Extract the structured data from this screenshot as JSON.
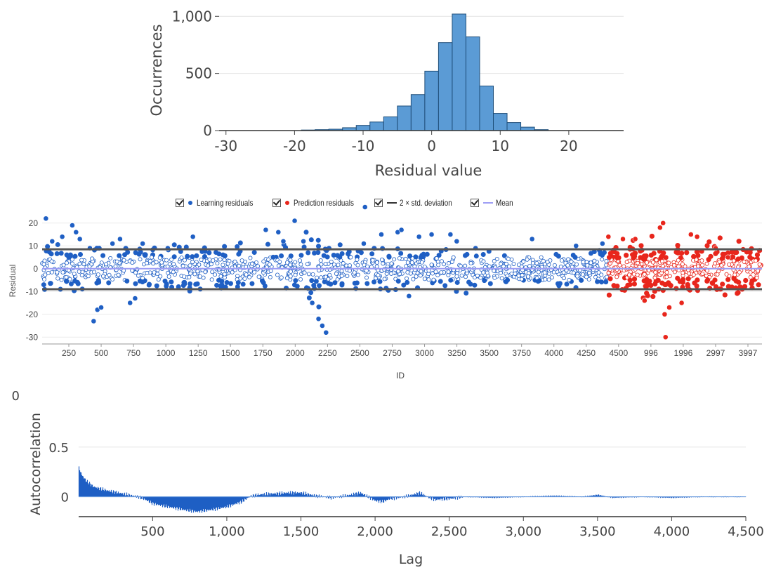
{
  "colors": {
    "histogram_bar": "#5b9bd5",
    "histogram_edge": "#1f4e79",
    "learning": "#1f5fc4",
    "prediction": "#e8261c",
    "std_line": "#555555",
    "mean_line": "#9d9df5",
    "acf_fill": "#1f5fc4"
  },
  "legend": {
    "items": [
      {
        "label": "Learning residuals",
        "marker": "dot",
        "color": "#1f5fc4"
      },
      {
        "label": "Prediction residuals",
        "marker": "dot",
        "color": "#e8261c"
      },
      {
        "label": "2 × std. deviation",
        "marker": "line",
        "color": "#333333"
      },
      {
        "label": "Mean",
        "marker": "line",
        "color": "#9d9df5"
      }
    ]
  },
  "chart_data": [
    {
      "type": "bar",
      "xlabel": "Residual value",
      "ylabel": "Occurrences",
      "xlim": [
        -31,
        28
      ],
      "ylim": [
        0,
        1020
      ],
      "xticks": [
        -30,
        -20,
        -10,
        0,
        10,
        20
      ],
      "xtick_labels": [
        "-30",
        "-20",
        "-10",
        "0",
        "10",
        "20"
      ],
      "yticks": [
        0,
        500,
        1000
      ],
      "ytick_labels": [
        "0",
        "500",
        "1,000"
      ],
      "bin_width": 2,
      "bin_starts": [
        -19,
        -17,
        -15,
        -13,
        -11,
        -9,
        -7,
        -5,
        -3,
        -1,
        1,
        3,
        5,
        7,
        9,
        11,
        13,
        15
      ],
      "values": [
        5,
        8,
        12,
        25,
        45,
        75,
        120,
        215,
        315,
        520,
        770,
        1020,
        820,
        390,
        150,
        70,
        30,
        8
      ]
    },
    {
      "type": "scatter",
      "xlabel": "ID",
      "ylabel": "Residual",
      "ylim": [
        -33,
        23
      ],
      "yticks": [
        20,
        10,
        0,
        -10,
        -20,
        -30
      ],
      "ytick_labels": [
        "20",
        "10",
        "0",
        "-10",
        "-20",
        "-30"
      ],
      "xtick_labels": [
        "250",
        "500",
        "750",
        "1000",
        "1250",
        "1500",
        "1750",
        "2000",
        "2250",
        "2500",
        "2750",
        "3000",
        "3250",
        "3500",
        "3750",
        "4000",
        "4250",
        "4500",
        "996",
        "1996",
        "2997",
        "3997"
      ],
      "std_upper": 8.5,
      "std_lower": -9,
      "mean": 0,
      "learning_count": 4500,
      "prediction_count": 5000,
      "series": [
        {
          "name": "Learning residuals",
          "outliers": [
            [
              30,
              22
            ],
            [
              80,
              12
            ],
            [
              160,
              14
            ],
            [
              240,
              19
            ],
            [
              270,
              16
            ],
            [
              300,
              13
            ],
            [
              380,
              9
            ],
            [
              410,
              -23
            ],
            [
              440,
              -18
            ],
            [
              470,
              -17
            ],
            [
              560,
              11
            ],
            [
              620,
              13
            ],
            [
              700,
              -15
            ],
            [
              740,
              -13
            ],
            [
              800,
              11
            ],
            [
              1000,
              9
            ],
            [
              1200,
              14
            ],
            [
              1780,
              17
            ],
            [
              1880,
              16
            ],
            [
              1920,
              12
            ],
            [
              2010,
              21
            ],
            [
              2080,
              12
            ],
            [
              2150,
              -15
            ],
            [
              2200,
              -22
            ],
            [
              2230,
              -25
            ],
            [
              2260,
              -28
            ],
            [
              2560,
              11
            ],
            [
              2570,
              27
            ],
            [
              2700,
              15
            ],
            [
              2830,
              16
            ],
            [
              2860,
              17
            ],
            [
              2920,
              -12
            ],
            [
              3000,
              14
            ],
            [
              3100,
              15
            ],
            [
              3250,
              15
            ],
            [
              3300,
              12
            ],
            [
              3450,
              9
            ],
            [
              3900,
              13
            ],
            [
              4250,
              10
            ],
            [
              4460,
              11
            ]
          ]
        },
        {
          "name": "Prediction residuals",
          "outliers": [
            [
              30,
              14
            ],
            [
              500,
              13
            ],
            [
              900,
              13
            ],
            [
              1200,
              -14
            ],
            [
              1700,
              18
            ],
            [
              1800,
              20
            ],
            [
              1850,
              -20
            ],
            [
              1880,
              -30
            ],
            [
              2000,
              -17
            ],
            [
              2400,
              -15
            ],
            [
              2700,
              15
            ],
            [
              2900,
              14
            ],
            [
              3500,
              9
            ],
            [
              3900,
              5
            ]
          ]
        }
      ]
    },
    {
      "type": "area",
      "xlabel": "Lag",
      "ylabel": "Autocorrelation",
      "xlim": [
        1,
        4500
      ],
      "ylim": [
        -0.2,
        1.0
      ],
      "yticks": [
        0,
        0.5
      ],
      "ytick_labels": [
        "0",
        "0.5"
      ],
      "top_label": "0",
      "xticks": [
        500,
        1000,
        1500,
        2000,
        2500,
        3000,
        3500,
        4000,
        4500
      ],
      "xtick_labels": [
        "500",
        "1,000",
        "1,500",
        "2,000",
        "2,500",
        "3,000",
        "3,500",
        "4,000",
        "4,500"
      ],
      "envelope": {
        "x": [
          1,
          20,
          50,
          100,
          150,
          200,
          300,
          400,
          450,
          500,
          600,
          700,
          800,
          900,
          1000,
          1100,
          1150,
          1200,
          1300,
          1400,
          1500,
          1600,
          1700,
          1800,
          1900,
          2000,
          2050,
          2100,
          2200,
          2300,
          2350,
          2400,
          2500,
          2600,
          2800,
          3000,
          3200,
          3400,
          3500,
          3600,
          3800,
          4000,
          4200,
          4500
        ],
        "y": [
          0.29,
          0.22,
          0.16,
          0.1,
          0.08,
          0.06,
          0.03,
          0.0,
          -0.03,
          -0.07,
          -0.1,
          -0.13,
          -0.15,
          -0.13,
          -0.1,
          -0.05,
          0.0,
          0.02,
          0.03,
          0.04,
          0.04,
          0.01,
          -0.01,
          0.01,
          0.04,
          -0.04,
          -0.05,
          -0.02,
          0.0,
          0.04,
          0.0,
          -0.03,
          -0.02,
          0.0,
          -0.01,
          0.0,
          0.01,
          0.0,
          0.02,
          -0.01,
          0.0,
          -0.01,
          0.0,
          0.0
        ]
      }
    }
  ]
}
